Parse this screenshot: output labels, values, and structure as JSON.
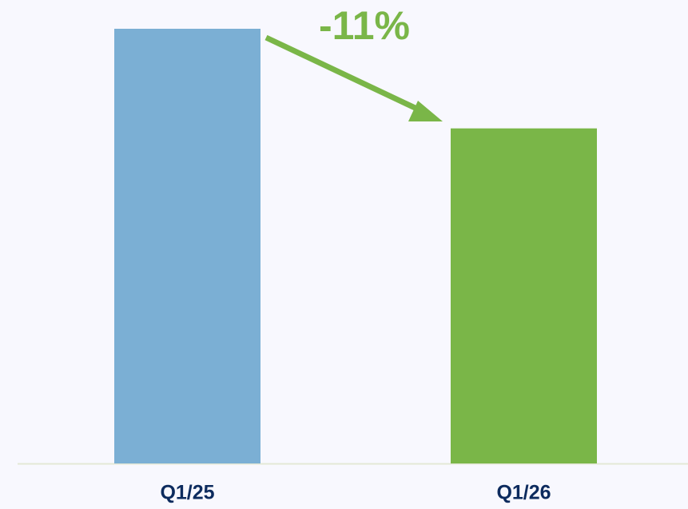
{
  "chart_data": {
    "type": "bar",
    "categories": [
      "Q1/25",
      "Q1/26"
    ],
    "values": [
      100,
      89
    ],
    "colors": [
      "#7bafd4",
      "#7ab648"
    ],
    "ylim": [
      52,
      100
    ],
    "annotations": [
      "-11%"
    ]
  }
}
